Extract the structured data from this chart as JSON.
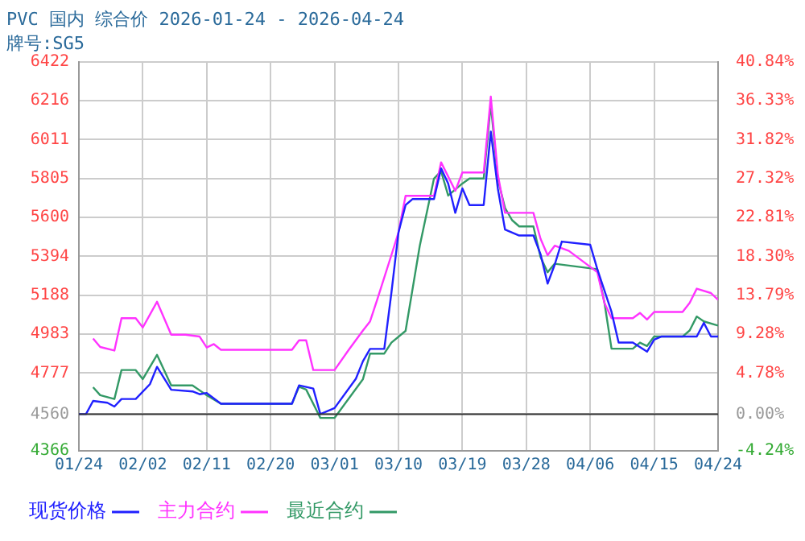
{
  "chart_data": {
    "type": "line",
    "title": "PVC 国内 综合价 2026-01-24 - 2026-04-24",
    "subtitle": "牌号:SG5",
    "xlim": [
      "2026-01-24",
      "2026-04-24"
    ],
    "xticks": [
      {
        "value": "2026-01-24",
        "label": "01/24"
      },
      {
        "value": "2026-02-02",
        "label": "02/02"
      },
      {
        "value": "2026-02-11",
        "label": "02/11"
      },
      {
        "value": "2026-02-20",
        "label": "02/20"
      },
      {
        "value": "2026-03-01",
        "label": "03/01"
      },
      {
        "value": "2026-03-10",
        "label": "03/10"
      },
      {
        "value": "2026-03-19",
        "label": "03/19"
      },
      {
        "value": "2026-03-28",
        "label": "03/28"
      },
      {
        "value": "2026-04-06",
        "label": "04/06"
      },
      {
        "value": "2026-04-15",
        "label": "04/15"
      },
      {
        "value": "2026-04-24",
        "label": "04/24"
      }
    ],
    "ylim": [
      4366,
      6422
    ],
    "yticks": [
      4366,
      4560,
      4777,
      4983,
      5188,
      5394,
      5600,
      5805,
      6011,
      6216,
      6422
    ],
    "y2lim": [
      -4.24,
      40.84
    ],
    "y2ticks": [
      {
        "value": -4.24,
        "label": "-4.24%"
      },
      {
        "value": 0,
        "label": "0.00%"
      },
      {
        "value": 4.78,
        "label": "4.78%"
      },
      {
        "value": 9.28,
        "label": "9.28%"
      },
      {
        "value": 13.79,
        "label": "13.79%"
      },
      {
        "value": 18.3,
        "label": "18.30%"
      },
      {
        "value": 22.81,
        "label": "22.81%"
      },
      {
        "value": 27.32,
        "label": "27.32%"
      },
      {
        "value": 31.82,
        "label": "31.82%"
      },
      {
        "value": 36.33,
        "label": "36.33%"
      },
      {
        "value": 40.84,
        "label": "40.84%"
      }
    ],
    "ref_lines": [
      {
        "axis": "y",
        "value": 4560,
        "color": "#333333"
      }
    ],
    "grid": true,
    "legend": "bottom",
    "line_style": "solid",
    "series": [
      {
        "name": "现货价格",
        "color": "#2020ff",
        "x": [
          "2026-01-24",
          "2026-01-25",
          "2026-01-26",
          "2026-01-28",
          "2026-01-29",
          "2026-01-30",
          "2026-02-01",
          "2026-02-03",
          "2026-02-04",
          "2026-02-06",
          "2026-02-09",
          "2026-02-10",
          "2026-02-11",
          "2026-02-13",
          "2026-02-23",
          "2026-02-24",
          "2026-02-26",
          "2026-02-27",
          "2026-03-01",
          "2026-03-04",
          "2026-03-05",
          "2026-03-06",
          "2026-03-08",
          "2026-03-09",
          "2026-03-10",
          "2026-03-11",
          "2026-03-12",
          "2026-03-15",
          "2026-03-16",
          "2026-03-17",
          "2026-03-18",
          "2026-03-19",
          "2026-03-20",
          "2026-03-22",
          "2026-03-23",
          "2026-03-24",
          "2026-03-25",
          "2026-03-26",
          "2026-03-27",
          "2026-03-29",
          "2026-03-30",
          "2026-03-31",
          "2026-04-01",
          "2026-04-02",
          "2026-04-06",
          "2026-04-07",
          "2026-04-09",
          "2026-04-10",
          "2026-04-12",
          "2026-04-14",
          "2026-04-15",
          "2026-04-16",
          "2026-04-19",
          "2026-04-21",
          "2026-04-22",
          "2026-04-23",
          "2026-04-24"
        ],
        "values": [
          4560,
          4560,
          4630,
          4620,
          4600,
          4640,
          4640,
          4718,
          4810,
          4689,
          4680,
          4665,
          4672,
          4615,
          4615,
          4712,
          4695,
          4560,
          4592,
          4747,
          4840,
          4905,
          4905,
          5200,
          5520,
          5665,
          5697,
          5697,
          5859,
          5779,
          5624,
          5753,
          5665,
          5665,
          6053,
          5750,
          5536,
          5520,
          5504,
          5504,
          5406,
          5250,
          5350,
          5472,
          5455,
          5326,
          5100,
          4938,
          4938,
          4890,
          4954,
          4970,
          4970,
          4970,
          5042,
          4970,
          4970
        ]
      },
      {
        "name": "主力合约",
        "color": "#ff33ff",
        "x": [
          "2026-01-26",
          "2026-01-27",
          "2026-01-29",
          "2026-01-30",
          "2026-02-01",
          "2026-02-02",
          "2026-02-04",
          "2026-02-06",
          "2026-02-08",
          "2026-02-10",
          "2026-02-11",
          "2026-02-12",
          "2026-02-13",
          "2026-02-23",
          "2026-02-24",
          "2026-02-25",
          "2026-02-26",
          "2026-03-01",
          "2026-03-03",
          "2026-03-05",
          "2026-03-06",
          "2026-03-07",
          "2026-03-09",
          "2026-03-10",
          "2026-03-11",
          "2026-03-15",
          "2026-03-16",
          "2026-03-18",
          "2026-03-19",
          "2026-03-22",
          "2026-03-23",
          "2026-03-24",
          "2026-03-25",
          "2026-03-27",
          "2026-03-29",
          "2026-03-30",
          "2026-03-31",
          "2026-04-01",
          "2026-04-03",
          "2026-04-07",
          "2026-04-08",
          "2026-04-09",
          "2026-04-12",
          "2026-04-13",
          "2026-04-14",
          "2026-04-15",
          "2026-04-19",
          "2026-04-20",
          "2026-04-21",
          "2026-04-23",
          "2026-04-24"
        ],
        "values": [
          4960,
          4915,
          4896,
          5067,
          5067,
          5018,
          5154,
          4980,
          4980,
          4970,
          4912,
          4930,
          4900,
          4900,
          4950,
          4950,
          4793,
          4793,
          4900,
          5002,
          5050,
          5164,
          5400,
          5520,
          5714,
          5714,
          5891,
          5740,
          5837,
          5837,
          6238,
          5824,
          5624,
          5624,
          5624,
          5487,
          5400,
          5450,
          5423,
          5310,
          5148,
          5067,
          5067,
          5095,
          5060,
          5100,
          5100,
          5148,
          5223,
          5200,
          5164
        ]
      },
      {
        "name": "最近合约",
        "color": "#339966",
        "x": [
          "2026-01-26",
          "2026-01-27",
          "2026-01-29",
          "2026-01-30",
          "2026-02-01",
          "2026-02-02",
          "2026-02-04",
          "2026-02-06",
          "2026-02-09",
          "2026-02-11",
          "2026-02-13",
          "2026-02-23",
          "2026-02-24",
          "2026-02-25",
          "2026-02-27",
          "2026-03-01",
          "2026-03-05",
          "2026-03-06",
          "2026-03-08",
          "2026-03-09",
          "2026-03-11",
          "2026-03-13",
          "2026-03-15",
          "2026-03-16",
          "2026-03-17",
          "2026-03-19",
          "2026-03-20",
          "2026-03-22",
          "2026-03-23",
          "2026-03-24",
          "2026-03-25",
          "2026-03-26",
          "2026-03-27",
          "2026-03-29",
          "2026-03-30",
          "2026-03-31",
          "2026-04-01",
          "2026-04-07",
          "2026-04-08",
          "2026-04-09",
          "2026-04-12",
          "2026-04-13",
          "2026-04-14",
          "2026-04-15",
          "2026-04-19",
          "2026-04-20",
          "2026-04-21",
          "2026-04-22",
          "2026-04-24"
        ],
        "values": [
          4702,
          4660,
          4640,
          4793,
          4793,
          4745,
          4873,
          4712,
          4712,
          4660,
          4615,
          4615,
          4705,
          4690,
          4540,
          4540,
          4745,
          4880,
          4880,
          4938,
          5000,
          5450,
          5805,
          5844,
          5715,
          5779,
          5805,
          5805,
          6199,
          5800,
          5650,
          5585,
          5552,
          5552,
          5390,
          5310,
          5355,
          5326,
          5150,
          4906,
          4906,
          4938,
          4920,
          4970,
          4970,
          5002,
          5076,
          5050,
          5028
        ]
      }
    ]
  }
}
